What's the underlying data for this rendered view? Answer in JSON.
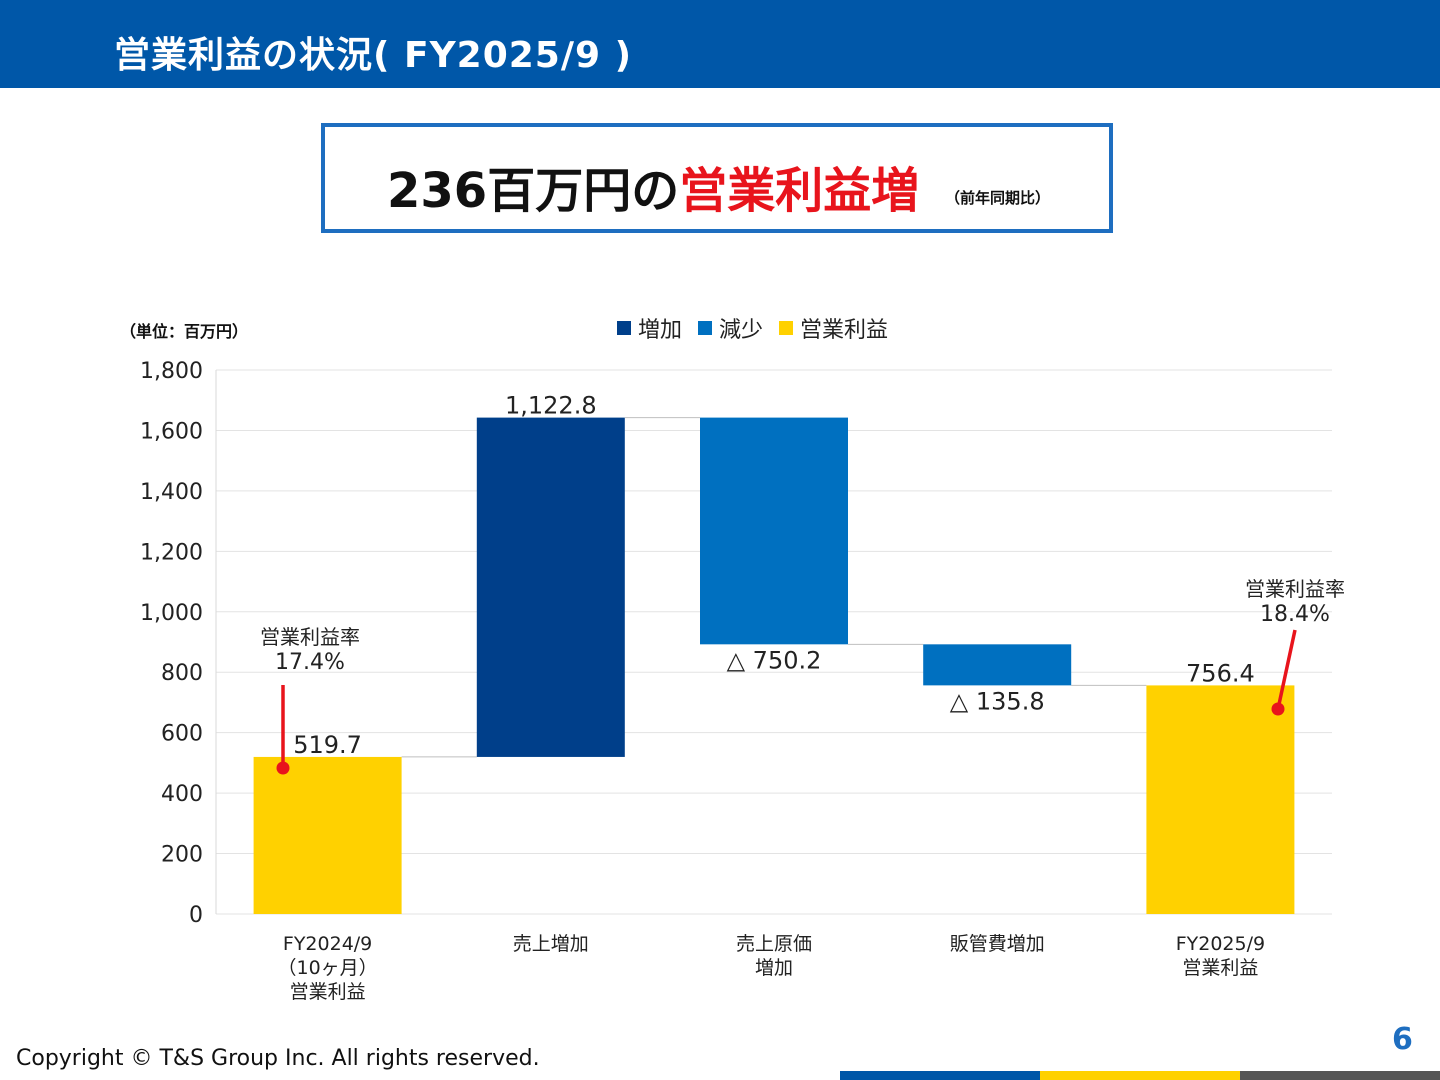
{
  "header": {
    "title": "営業利益の状況( FY2025/9 )"
  },
  "headline": {
    "main": "236百万円の",
    "highlight": "営業利益増",
    "note": "（前年同期比）"
  },
  "unit_label": "（単位：百万円）",
  "legend": [
    {
      "label": "増加",
      "color": "#003F8A"
    },
    {
      "label": "減少",
      "color": "#0070C0"
    },
    {
      "label": "営業利益",
      "color": "#FFD100"
    }
  ],
  "chart_data": {
    "type": "waterfall",
    "ylim": [
      0,
      1800
    ],
    "yticks": [
      0,
      200,
      400,
      600,
      800,
      1000,
      1200,
      1400,
      1600,
      1800
    ],
    "ytick_labels": [
      "0",
      "200",
      "400",
      "600",
      "800",
      "1,000",
      "1,200",
      "1,400",
      "1,600",
      "1,800"
    ],
    "grid": true,
    "categories": [
      {
        "lines": [
          "FY2024/9",
          "（10ヶ月）",
          "営業利益"
        ]
      },
      {
        "lines": [
          "売上増加"
        ]
      },
      {
        "lines": [
          "売上原価",
          "増加"
        ]
      },
      {
        "lines": [
          "販管費増加"
        ]
      },
      {
        "lines": [
          "FY2025/9",
          "営業利益"
        ]
      }
    ],
    "bars": [
      {
        "kind": "total",
        "bottom": 0,
        "top": 519.7,
        "value": 519.7,
        "label": "519.7"
      },
      {
        "kind": "increase",
        "bottom": 519.7,
        "top": 1642.5,
        "value": 1122.8,
        "label": "1,122.8"
      },
      {
        "kind": "decrease",
        "bottom": 892.3,
        "top": 1642.5,
        "value": -750.2,
        "label": "△ 750.2"
      },
      {
        "kind": "decrease",
        "bottom": 756.5,
        "top": 892.3,
        "value": -135.8,
        "label": "△ 135.8"
      },
      {
        "kind": "total",
        "bottom": 0,
        "top": 756.4,
        "value": 756.4,
        "label": "756.4"
      }
    ],
    "colors": {
      "increase": "#003F8A",
      "decrease": "#0070C0",
      "total": "#FFD100"
    },
    "annotations": [
      {
        "bar": 0,
        "label": "営業利益率",
        "value": "17.4%"
      },
      {
        "bar": 4,
        "label": "営業利益率",
        "value": "18.4%"
      }
    ],
    "annotation_color": "#E8141C"
  },
  "footer": {
    "copyright": "Copyright © T&S Group Inc. All rights reserved.",
    "page": "6",
    "bar_colors": [
      "#0057A8",
      "#FFD100",
      "#555555"
    ]
  }
}
